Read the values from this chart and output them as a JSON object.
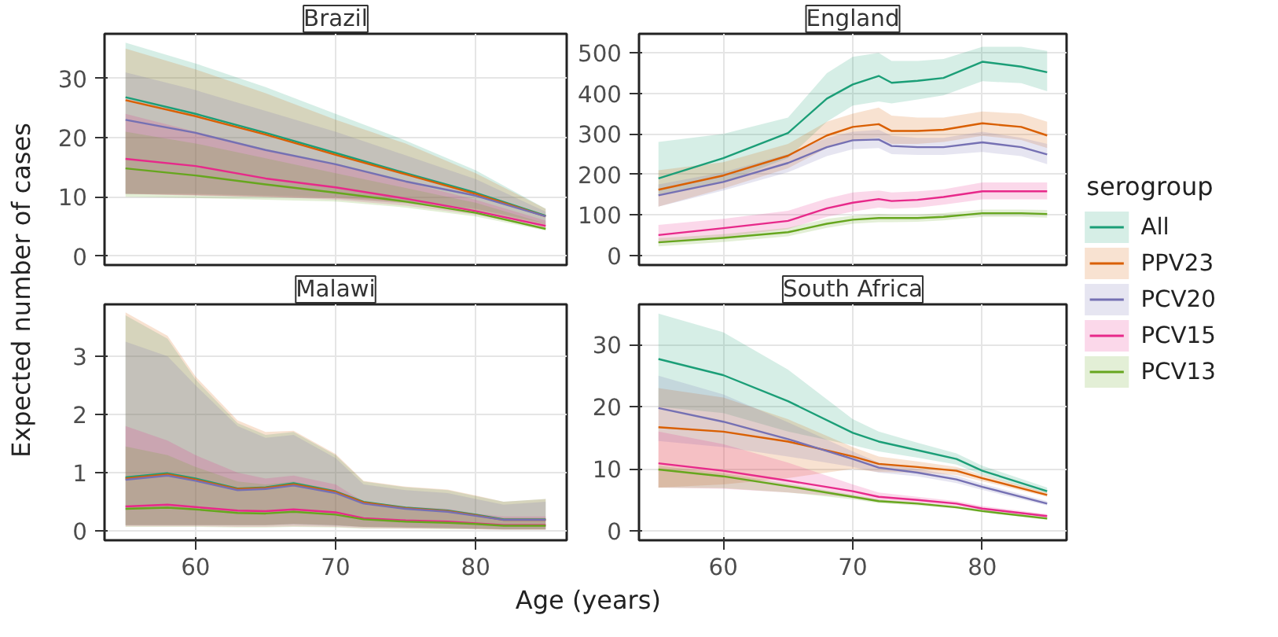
{
  "chart_data": [
    {
      "type": "line",
      "title": "Brazil",
      "ylabel": "Expected number of cases",
      "legend": "right",
      "legend_title": "serogroup",
      "grid": true,
      "tick_labels": "y",
      "x": [
        55,
        60,
        65,
        70,
        75,
        80,
        85
      ],
      "xlim": [
        53.5,
        86.5
      ],
      "xticks": [
        60,
        70,
        80
      ],
      "ylim": [
        -1.5,
        37.5
      ],
      "yticks": [
        0,
        10,
        20,
        30
      ],
      "series": [
        {
          "name": "All",
          "color": "#1b9e77",
          "values": [
            26.8,
            24,
            20.8,
            17.4,
            14,
            10.7,
            6.8
          ],
          "lower": [
            10.5,
            10.5,
            10.2,
            10,
            9.2,
            8,
            5.5
          ],
          "upper": [
            36,
            32.5,
            28.5,
            24,
            19.5,
            14.5,
            8
          ]
        },
        {
          "name": "PPV23",
          "color": "#d95f02",
          "values": [
            26.3,
            23.6,
            20.5,
            17.1,
            13.8,
            10.5,
            6.7
          ],
          "lower": [
            10.5,
            10.3,
            10,
            9.8,
            9,
            7.8,
            5.3
          ],
          "upper": [
            35,
            31.5,
            27.5,
            23,
            19,
            14,
            8
          ]
        },
        {
          "name": "PCV20",
          "color": "#7570b3",
          "values": [
            23,
            20.8,
            17.9,
            15.5,
            12.6,
            10.2,
            6.7
          ],
          "lower": [
            10.5,
            10.3,
            10,
            9.7,
            8.9,
            7.6,
            5.2
          ],
          "upper": [
            31,
            28,
            24.5,
            21,
            17,
            13,
            7.5
          ]
        },
        {
          "name": "PCV15",
          "color": "#e7298a",
          "values": [
            16.4,
            15.2,
            13.1,
            11.6,
            9.7,
            7.6,
            5.1
          ],
          "lower": [
            10.5,
            10.2,
            10,
            9.5,
            8.5,
            7,
            4.7
          ],
          "upper": [
            24,
            21,
            18,
            15.5,
            12.5,
            9.5,
            6
          ]
        },
        {
          "name": "PCV13",
          "color": "#66a61e",
          "values": [
            14.8,
            13.6,
            12.1,
            10.7,
            9.2,
            7.3,
            4.6
          ],
          "lower": [
            10,
            9.8,
            9.5,
            9.2,
            8.2,
            6.7,
            4.3
          ],
          "upper": [
            21,
            19,
            16.5,
            14,
            11.5,
            9,
            5.5
          ]
        }
      ]
    },
    {
      "type": "line",
      "title": "England",
      "grid": true,
      "tick_labels": "y",
      "x": [
        55,
        60,
        65,
        68,
        70,
        72,
        73,
        75,
        77,
        80,
        83,
        85
      ],
      "xlim": [
        53.5,
        86.5
      ],
      "xticks": [
        60,
        70,
        80
      ],
      "ylim": [
        -24,
        547
      ],
      "yticks": [
        0,
        100,
        200,
        300,
        400,
        500
      ],
      "series": [
        {
          "color": "#1b9e77",
          "values": [
            190,
            240,
            302,
            387,
            422,
            443,
            426,
            431,
            438,
            478,
            466,
            452
          ],
          "lower": [
            150,
            180,
            240,
            330,
            370,
            380,
            375,
            385,
            395,
            430,
            425,
            405
          ],
          "upper": [
            280,
            300,
            340,
            450,
            490,
            500,
            480,
            480,
            485,
            515,
            515,
            505
          ]
        },
        {
          "color": "#d95f02",
          "values": [
            162,
            197,
            246,
            296,
            317,
            324,
            307,
            307,
            310,
            326,
            317,
            296
          ],
          "lower": [
            120,
            165,
            215,
            265,
            285,
            290,
            275,
            275,
            280,
            295,
            285,
            265
          ],
          "upper": [
            210,
            230,
            275,
            330,
            350,
            365,
            345,
            340,
            340,
            355,
            350,
            330
          ]
        },
        {
          "color": "#7570b3",
          "values": [
            148,
            181,
            228,
            267,
            284,
            286,
            270,
            267,
            267,
            279,
            267,
            249
          ],
          "lower": [
            120,
            160,
            205,
            245,
            262,
            265,
            250,
            248,
            248,
            255,
            245,
            225
          ],
          "upper": [
            175,
            205,
            250,
            290,
            305,
            310,
            295,
            290,
            290,
            305,
            290,
            275
          ]
        },
        {
          "color": "#e7298a",
          "values": [
            50,
            67,
            85,
            116,
            130,
            139,
            134,
            137,
            144,
            158,
            158,
            158
          ],
          "lower": [
            30,
            45,
            65,
            95,
            108,
            118,
            115,
            118,
            125,
            138,
            138,
            138
          ],
          "upper": [
            75,
            90,
            110,
            140,
            155,
            160,
            155,
            158,
            163,
            180,
            180,
            180
          ]
        },
        {
          "color": "#66a61e",
          "values": [
            32,
            43,
            57,
            78,
            88,
            92,
            92,
            92,
            95,
            104,
            104,
            102
          ],
          "lower": [
            22,
            33,
            47,
            68,
            78,
            82,
            82,
            83,
            86,
            95,
            95,
            93
          ],
          "upper": [
            42,
            52,
            68,
            90,
            98,
            102,
            101,
            101,
            104,
            113,
            113,
            112
          ]
        }
      ]
    },
    {
      "type": "line",
      "title": "Malawi",
      "xlabel": "Age (years)",
      "grid": true,
      "x": [
        55,
        58,
        60,
        63,
        65,
        67,
        70,
        72,
        75,
        78,
        80,
        82,
        85
      ],
      "xlim": [
        53.5,
        86.5
      ],
      "xticks": [
        60,
        70,
        80
      ],
      "ylim": [
        -0.16,
        3.89
      ],
      "yticks": [
        0,
        1,
        2,
        3
      ],
      "series": [
        {
          "color": "#1b9e77",
          "values": [
            0.92,
            0.99,
            0.9,
            0.73,
            0.75,
            0.82,
            0.68,
            0.5,
            0.4,
            0.35,
            0.28,
            0.2,
            0.2
          ],
          "lower": [
            0.1,
            0.1,
            0.1,
            0.1,
            0.1,
            0.12,
            0.1,
            0.07,
            0.06,
            0.05,
            0.04,
            0.03,
            0.03
          ],
          "upper": [
            3.7,
            3.3,
            2.6,
            1.85,
            1.65,
            1.7,
            1.3,
            0.85,
            0.75,
            0.7,
            0.6,
            0.5,
            0.55
          ]
        },
        {
          "color": "#d95f02",
          "values": [
            0.9,
            0.97,
            0.88,
            0.72,
            0.74,
            0.8,
            0.67,
            0.49,
            0.39,
            0.34,
            0.27,
            0.19,
            0.19
          ],
          "lower": [
            0.1,
            0.1,
            0.1,
            0.1,
            0.1,
            0.12,
            0.1,
            0.07,
            0.06,
            0.05,
            0.04,
            0.03,
            0.03
          ],
          "upper": [
            3.75,
            3.35,
            2.65,
            1.9,
            1.7,
            1.72,
            1.32,
            0.86,
            0.76,
            0.71,
            0.61,
            0.5,
            0.55
          ]
        },
        {
          "color": "#7570b3",
          "values": [
            0.88,
            0.95,
            0.86,
            0.7,
            0.72,
            0.78,
            0.65,
            0.47,
            0.38,
            0.33,
            0.26,
            0.19,
            0.19
          ],
          "lower": [
            0.1,
            0.1,
            0.1,
            0.1,
            0.1,
            0.11,
            0.09,
            0.07,
            0.06,
            0.05,
            0.04,
            0.03,
            0.03
          ],
          "upper": [
            3.25,
            3.0,
            2.5,
            1.8,
            1.6,
            1.65,
            1.25,
            0.8,
            0.7,
            0.65,
            0.55,
            0.45,
            0.5
          ]
        },
        {
          "color": "#e7298a",
          "values": [
            0.42,
            0.45,
            0.41,
            0.35,
            0.34,
            0.37,
            0.32,
            0.22,
            0.18,
            0.16,
            0.13,
            0.1,
            0.1
          ],
          "lower": [
            0.08,
            0.08,
            0.08,
            0.07,
            0.07,
            0.08,
            0.07,
            0.05,
            0.04,
            0.04,
            0.03,
            0.02,
            0.02
          ],
          "upper": [
            1.8,
            1.55,
            1.3,
            1.0,
            0.9,
            0.95,
            0.8,
            0.5,
            0.42,
            0.38,
            0.3,
            0.25,
            0.25
          ]
        },
        {
          "color": "#66a61e",
          "values": [
            0.38,
            0.4,
            0.37,
            0.31,
            0.3,
            0.33,
            0.28,
            0.2,
            0.16,
            0.14,
            0.12,
            0.09,
            0.09
          ],
          "lower": [
            0.07,
            0.07,
            0.07,
            0.06,
            0.06,
            0.07,
            0.06,
            0.04,
            0.04,
            0.03,
            0.03,
            0.02,
            0.02
          ],
          "upper": [
            1.45,
            1.3,
            1.1,
            0.85,
            0.8,
            0.85,
            0.7,
            0.45,
            0.38,
            0.34,
            0.27,
            0.22,
            0.22
          ]
        }
      ]
    },
    {
      "type": "line",
      "title": "South Africa",
      "grid": true,
      "x": [
        55,
        60,
        65,
        70,
        72,
        75,
        78,
        80,
        85
      ],
      "xlim": [
        53.5,
        86.5
      ],
      "xticks": [
        60,
        70,
        80
      ],
      "ylim": [
        -1.5,
        36.5
      ],
      "yticks": [
        0,
        10,
        20,
        30
      ],
      "series": [
        {
          "color": "#1b9e77",
          "values": [
            27.7,
            25.1,
            20.9,
            15.8,
            14.4,
            13.0,
            11.6,
            9.7,
            6.4
          ],
          "lower": [
            20,
            19,
            16,
            13.8,
            12.8,
            11.8,
            10.7,
            9,
            6
          ],
          "upper": [
            35,
            32,
            26,
            18,
            16,
            14.2,
            12.5,
            10.5,
            7
          ]
        },
        {
          "color": "#d95f02",
          "values": [
            16.7,
            16.0,
            14.4,
            12.0,
            10.8,
            10.3,
            9.7,
            8.5,
            5.8
          ],
          "lower": [
            7,
            7.5,
            8.5,
            10,
            9.5,
            9.4,
            9,
            8,
            5.5
          ],
          "upper": [
            23,
            21.5,
            18,
            13.5,
            12,
            11.2,
            10.3,
            9,
            6.2
          ]
        },
        {
          "color": "#7570b3",
          "values": [
            19.8,
            17.6,
            14.8,
            11.6,
            10.2,
            9.4,
            8.3,
            7.1,
            4.4
          ],
          "lower": [
            14.5,
            13.5,
            12,
            10.3,
            9.4,
            8.8,
            7.7,
            6.6,
            4.1
          ],
          "upper": [
            25,
            22,
            17.5,
            12.8,
            11,
            10,
            8.9,
            7.6,
            4.8
          ]
        },
        {
          "color": "#e7298a",
          "values": [
            10.9,
            9.7,
            8.1,
            6.4,
            5.5,
            5.0,
            4.4,
            3.6,
            2.4
          ],
          "lower": [
            7,
            6.8,
            6.2,
            5.4,
            4.9,
            4.5,
            4,
            3.3,
            2.1
          ],
          "upper": [
            16,
            14,
            11,
            7.5,
            6.2,
            5.5,
            4.8,
            4,
            2.7
          ]
        },
        {
          "color": "#66a61e",
          "values": [
            9.9,
            8.8,
            7.2,
            5.5,
            4.8,
            4.4,
            3.8,
            3.2,
            2.0
          ],
          "lower": [
            7,
            6.9,
            6.2,
            5.1,
            4.5,
            4.1,
            3.6,
            3,
            1.8
          ],
          "upper": [
            10.5,
            9.3,
            7.6,
            5.8,
            5.1,
            4.6,
            4,
            3.4,
            2.2
          ]
        }
      ]
    }
  ]
}
